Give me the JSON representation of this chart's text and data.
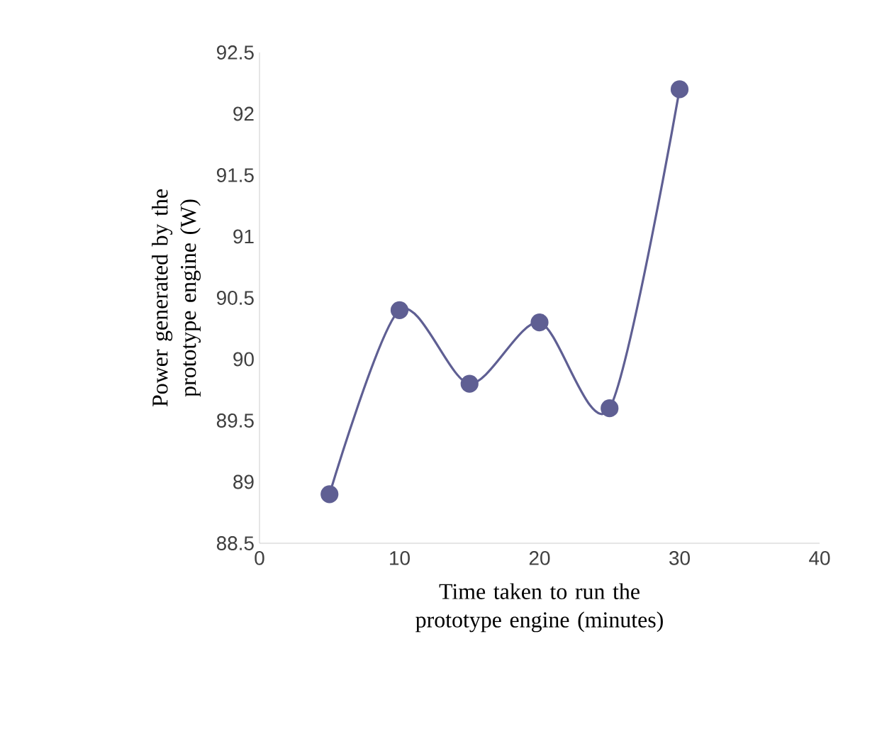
{
  "chart_data": {
    "type": "line",
    "xlabel": "Time taken to run the prototype engine (minutes)",
    "ylabel": "Power generated by the prototype engine (W)",
    "series": [
      {
        "color": "#5f5f93",
        "x": [
          5,
          10,
          15,
          20,
          25,
          30
        ],
        "values": [
          88.9,
          90.4,
          89.8,
          90.3,
          89.6,
          92.2
        ]
      }
    ],
    "xlim": [
      0,
      40
    ],
    "xticks": [
      0,
      10,
      20,
      30,
      40
    ],
    "ylim": [
      88.5,
      92.5
    ],
    "yticks": [
      88.5,
      89,
      89.5,
      90,
      90.5,
      91,
      91.5,
      92,
      92.5
    ],
    "marker": "circle",
    "line_style": "solid"
  }
}
